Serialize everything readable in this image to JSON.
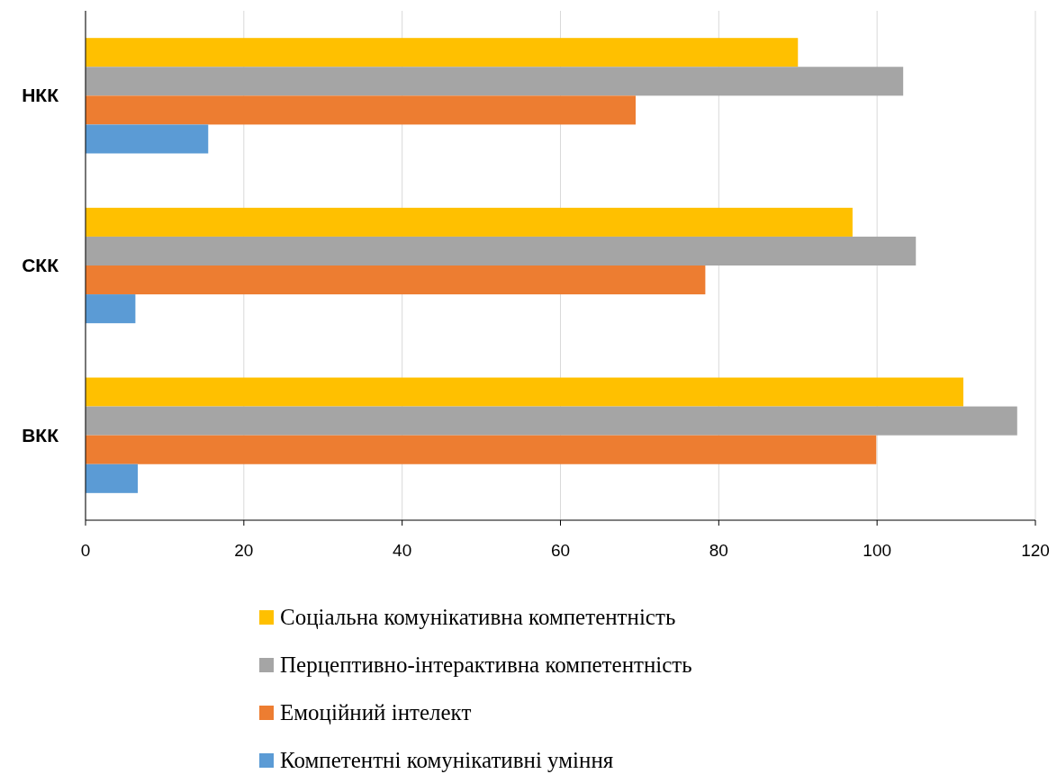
{
  "chart_data": {
    "type": "bar",
    "orientation": "horizontal",
    "categories": [
      "НКК",
      "СКК",
      "ВКК"
    ],
    "series": [
      {
        "name": "Соціальна комунікативна компетентність",
        "color": "#ffc000",
        "values": [
          90.0,
          96.9,
          110.9
        ]
      },
      {
        "name": "Перцептивно-інтерактивна компетентність",
        "color": "#a5a5a5",
        "values": [
          103.3,
          104.9,
          117.7
        ]
      },
      {
        "name": "Емоційний інтелект",
        "color": "#ed7d31",
        "values": [
          69.5,
          78.3,
          99.9
        ]
      },
      {
        "name": "Компетентні комунікативні уміння",
        "color": "#5b9bd5",
        "values": [
          15.5,
          6.3,
          6.6
        ]
      }
    ],
    "xlim": [
      0,
      120
    ],
    "xticks": [
      0,
      20,
      40,
      60,
      80,
      100,
      120
    ],
    "grid": "x",
    "legend": "bottom"
  }
}
